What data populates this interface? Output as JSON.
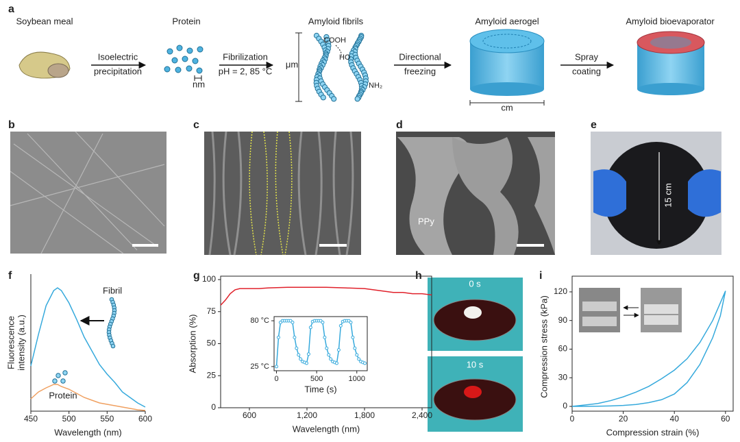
{
  "panel_labels": [
    "a",
    "b",
    "c",
    "d",
    "e",
    "f",
    "g",
    "h",
    "i"
  ],
  "panel_a": {
    "stages": [
      "Soybean meal",
      "Protein",
      "Amyloid fibrils",
      "Amyloid aerogel",
      "Amyloid bioevaporator"
    ],
    "steps": [
      [
        "Isoelectric",
        "precipitation"
      ],
      [
        "Fibrilization",
        "pH = 2, 85 °C"
      ],
      [
        "Directional",
        "freezing"
      ],
      [
        "Spray",
        "coating"
      ]
    ],
    "scales": [
      "nm",
      "μm",
      "cm"
    ],
    "groups": [
      "COOH",
      "HO",
      "NH₂"
    ]
  },
  "panel_d": {
    "annotation": "PPy"
  },
  "panel_e": {
    "annotation": "15 cm"
  },
  "panel_h": {
    "times": [
      "0 s",
      "10 s"
    ]
  },
  "chart_data": [
    {
      "type": "line",
      "xlabel": "Wavelength (nm)",
      "ylabel": [
        "Fluorescence",
        "intensity (a.u.)"
      ],
      "x": [
        450,
        460,
        470,
        480,
        485,
        490,
        500,
        510,
        520,
        530,
        540,
        550,
        560,
        570,
        580,
        590,
        600
      ],
      "series": [
        {
          "name": "Fibril",
          "color": "#35a9dc",
          "values": [
            33,
            56,
            77,
            88,
            90,
            88,
            79,
            67,
            54,
            44,
            34,
            27,
            21,
            14,
            10,
            6,
            3
          ]
        },
        {
          "name": "Protein",
          "color": "#f0a060",
          "values": [
            9,
            14,
            17,
            19.5,
            19.5,
            18,
            16,
            13,
            10,
            8,
            6,
            5,
            4,
            3,
            2,
            1,
            0.5
          ]
        }
      ],
      "xlim": [
        450,
        600
      ],
      "xticks": [
        450,
        500,
        550,
        600
      ],
      "ylim": [
        0,
        100
      ]
    },
    {
      "type": "line",
      "xlabel": "Wavelength (nm)",
      "ylabel": "Absorption (%)",
      "x": [
        300,
        350,
        400,
        450,
        500,
        600,
        700,
        800,
        1000,
        1200,
        1400,
        1600,
        1800,
        1900,
        2000,
        2100,
        2200,
        2300,
        2400,
        2500
      ],
      "series": [
        {
          "color": "#e0202a",
          "values": [
            80,
            84,
            89,
            92,
            93,
            93,
            93,
            93.5,
            94,
            94,
            94,
            93.5,
            93,
            92,
            91,
            90,
            90,
            89,
            89,
            88
          ]
        }
      ],
      "xlim": [
        300,
        2500
      ],
      "xticks": [
        600,
        {
          "value": 1200,
          "label": "1,200"
        },
        {
          "value": 1800,
          "label": "1,800"
        },
        {
          "value": 2400,
          "label": "2,400"
        }
      ],
      "ylim": [
        0,
        100
      ],
      "yticks": [
        0,
        25,
        50,
        75,
        100
      ]
    },
    {
      "type": "line",
      "markers": true,
      "xlabel": "Time (s)",
      "x": [
        0,
        25,
        50,
        75,
        100,
        125,
        150,
        175,
        200,
        225,
        250,
        275,
        300,
        325,
        350,
        375,
        400,
        425,
        450,
        475,
        500,
        525,
        550,
        575,
        600,
        625,
        650,
        675,
        700,
        725,
        750,
        775,
        800,
        825,
        850,
        875,
        900,
        925,
        950,
        975,
        1000,
        1025,
        1050,
        1075,
        1100
      ],
      "series": [
        {
          "color": "#35a9dc",
          "values": [
            25,
            60,
            78,
            80,
            80,
            80,
            80,
            80,
            78,
            60,
            47,
            39,
            34,
            31,
            30,
            29,
            40,
            72,
            79,
            80,
            80,
            80,
            80,
            78,
            60,
            47,
            39,
            34,
            31,
            30,
            29,
            45,
            74,
            79,
            80,
            80,
            80,
            78,
            60,
            47,
            39,
            34,
            31,
            30,
            29
          ]
        }
      ],
      "xlim": [
        -30,
        1130
      ],
      "xticks": [
        0,
        500,
        1000
      ],
      "ylim": [
        20,
        85
      ],
      "yticks": [
        {
          "value": 25,
          "label": "25 °C"
        },
        {
          "value": 80,
          "label": "80 °C"
        }
      ]
    },
    {
      "type": "line",
      "xlabel": "Compression strain (%)",
      "ylabel": "Compression stress (kPa)",
      "x": [
        0,
        5,
        10,
        15,
        20,
        25,
        30,
        35,
        40,
        45,
        50,
        55,
        60,
        58,
        55,
        50,
        45,
        40,
        35,
        30,
        25,
        20,
        15,
        10,
        5,
        0
      ],
      "series": [
        {
          "color": "#35a9dc",
          "values": [
            0,
            1.5,
            3,
            6,
            10,
            15,
            21,
            29,
            38,
            50,
            67,
            90,
            121,
            95,
            72,
            44,
            25,
            13,
            7,
            4,
            2,
            1,
            0.5,
            0.2,
            0,
            0
          ]
        }
      ],
      "xlim": [
        0,
        63
      ],
      "xticks": [
        0,
        20,
        40,
        60
      ],
      "ylim": [
        -5,
        130
      ],
      "yticks": [
        0,
        30,
        60,
        90,
        120
      ]
    }
  ]
}
